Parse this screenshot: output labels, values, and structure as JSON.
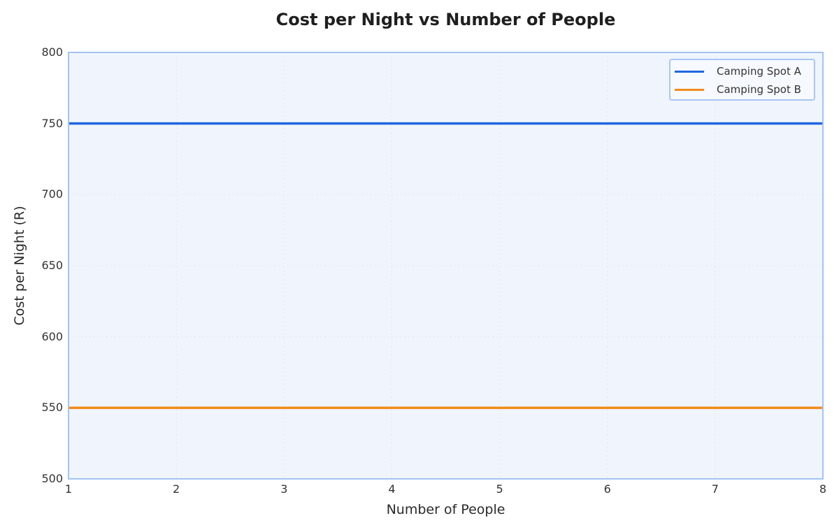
{
  "chart_data": {
    "type": "line",
    "title": "Cost per Night vs Number of People",
    "xlabel": "Number of People",
    "ylabel": "Cost per Night (R)",
    "x": [
      1,
      2,
      3,
      4,
      5,
      6,
      7,
      8
    ],
    "xlim": [
      1,
      8
    ],
    "ylim": [
      500,
      800
    ],
    "xticks": [
      "1",
      "2",
      "3",
      "4",
      "5",
      "6",
      "7",
      "8"
    ],
    "yticks": [
      "500",
      "550",
      "600",
      "650",
      "700",
      "750",
      "800"
    ],
    "grid": true,
    "legend_position": "upper right",
    "series": [
      {
        "name": "Camping Spot A",
        "color": "#1f66e0",
        "values": [
          750,
          750,
          750,
          750,
          750,
          750,
          750,
          750
        ]
      },
      {
        "name": "Camping Spot B",
        "color": "#f28c1a",
        "values": [
          550,
          550,
          550,
          550,
          550,
          550,
          550,
          550
        ]
      }
    ]
  },
  "colors": {
    "plot_bg": "#f0f5fd",
    "axis_border": "#a4c3f3",
    "grid": "#dde5f2"
  }
}
